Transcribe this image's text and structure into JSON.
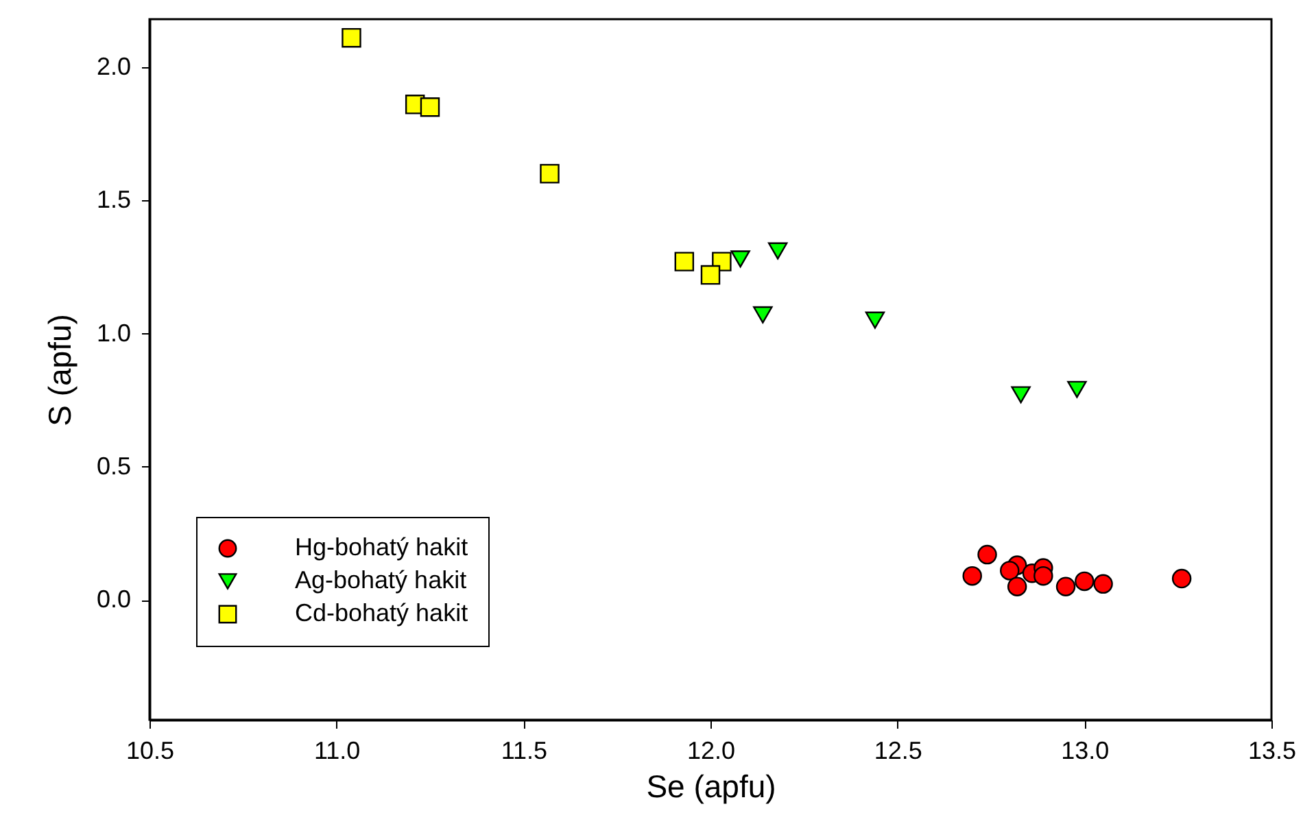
{
  "chart_data": {
    "type": "scatter",
    "xlabel": "Se (apfu)",
    "ylabel": "S (apfu)",
    "xlim": [
      10.5,
      13.5
    ],
    "ylim": [
      -0.45,
      2.18
    ],
    "xticks": [
      10.5,
      {
        "value": 11,
        "label": "11.0"
      },
      11.5,
      {
        "value": 12,
        "label": "12.0"
      },
      12.5,
      {
        "value": 13,
        "label": "13.0"
      },
      13.5
    ],
    "yticks": [
      {
        "value": 0,
        "label": "0.0"
      },
      0.5,
      {
        "value": 1,
        "label": "1.0"
      },
      1.5,
      {
        "value": 2,
        "label": "2.0"
      }
    ],
    "grid": false,
    "legend": "bottom left",
    "series": [
      {
        "name": "Hg-bohatý hakit",
        "color": "#ff0000",
        "marker": "circle",
        "x": [
          12.7,
          12.74,
          12.82,
          12.8,
          12.82,
          12.86,
          12.89,
          12.89,
          12.95,
          13.0,
          13.05,
          13.26
        ],
        "values": [
          0.09,
          0.17,
          0.13,
          0.11,
          0.05,
          0.1,
          0.12,
          0.09,
          0.05,
          0.07,
          0.06,
          0.08
        ]
      },
      {
        "name": "Ag-bohatý hakit",
        "color": "#00ff00",
        "marker": "triangle",
        "x": [
          12.08,
          12.18,
          12.14,
          12.44,
          12.83,
          12.98
        ],
        "values": [
          1.28,
          1.31,
          1.07,
          1.05,
          0.77,
          0.79
        ]
      },
      {
        "name": "Cd-bohatý hakit",
        "color": "#ffff00",
        "marker": "square",
        "x": [
          11.04,
          11.21,
          11.25,
          11.57,
          11.93,
          12.03,
          12.0
        ],
        "values": [
          2.11,
          1.86,
          1.85,
          1.6,
          1.27,
          1.27,
          1.22
        ]
      }
    ]
  }
}
